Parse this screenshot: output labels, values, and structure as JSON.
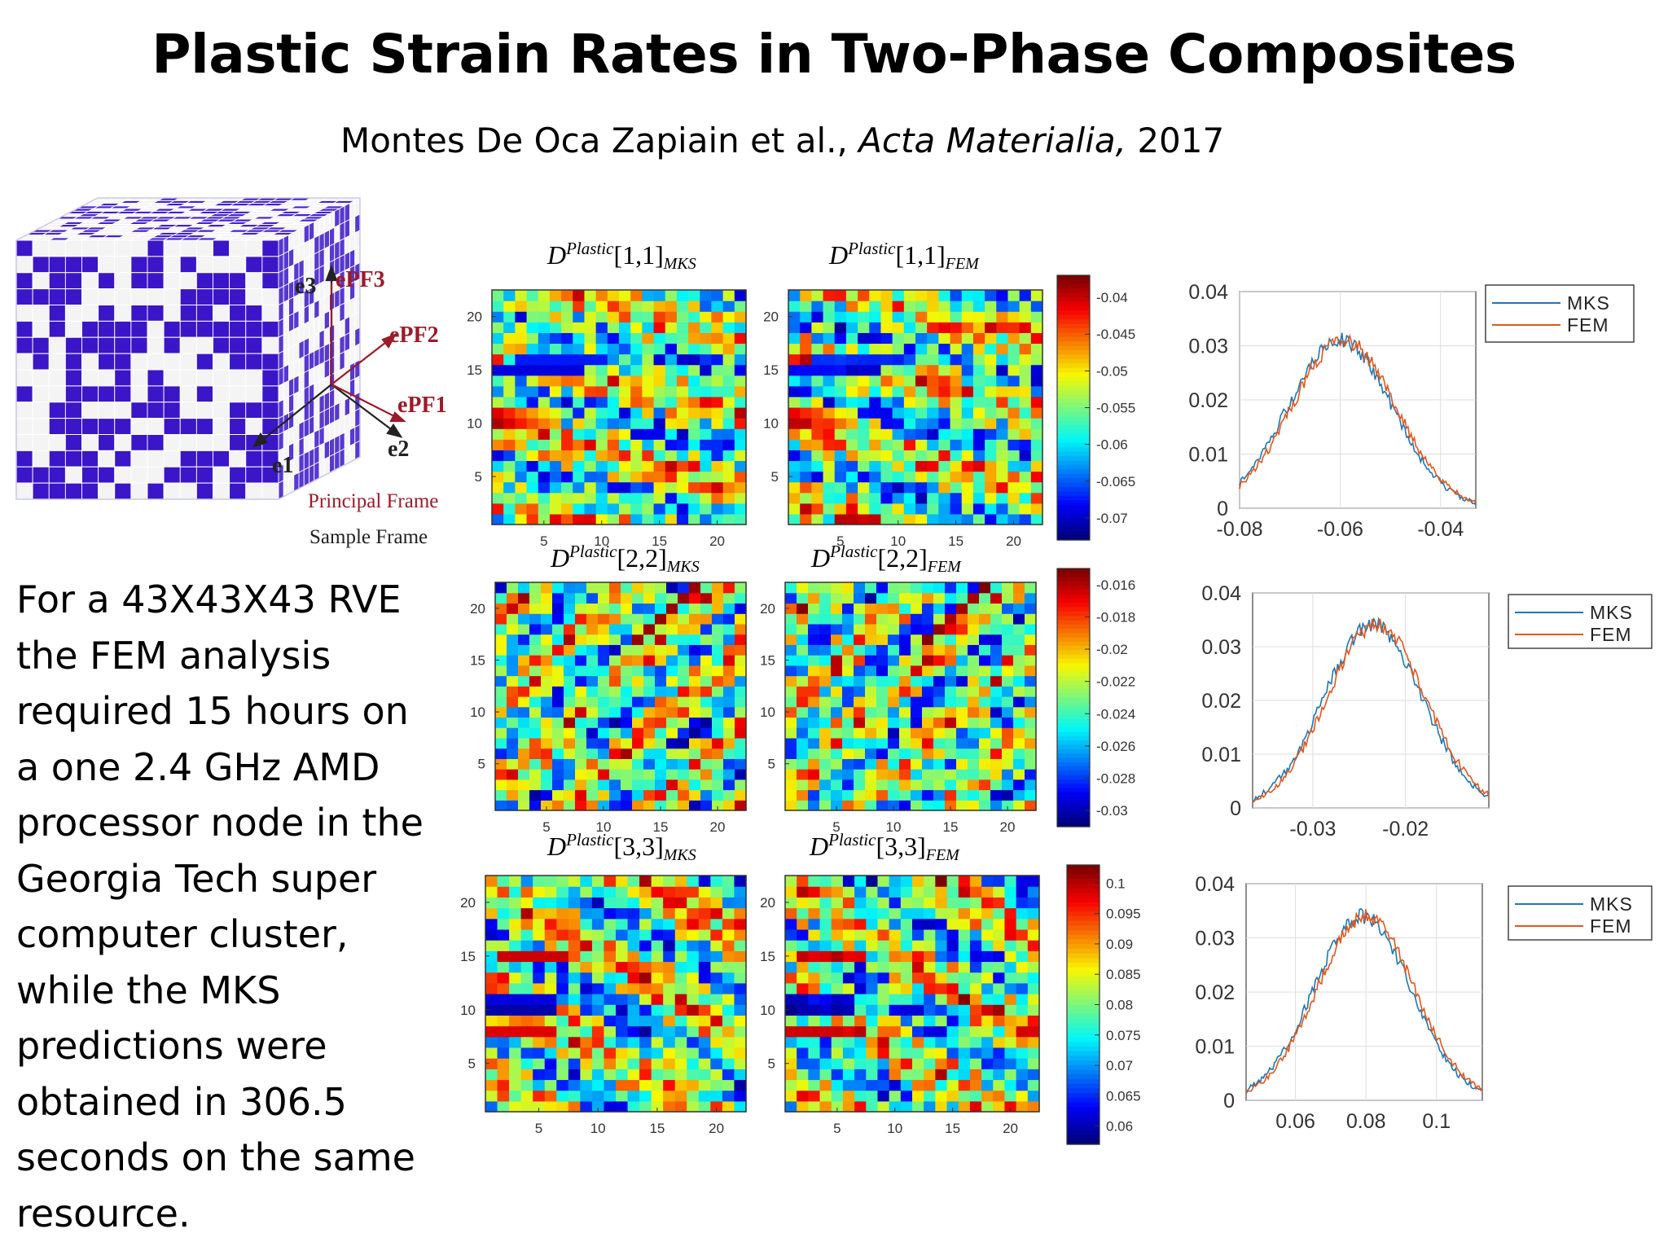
{
  "title": "Plastic Strain Rates in Two-Phase Composites",
  "citation": {
    "authors": "Montes De Oca Zapiain et al., ",
    "journal": "Acta Materialia,",
    "year": " 2017"
  },
  "body_text": "For a 43X43X43 RVE the FEM analysis required 15 hours on a one 2.4 GHz AMD processor node in the Georgia Tech super computer cluster, while the MKS predictions were obtained in 306.5 seconds on the same resource.",
  "cube_diagram": {
    "axes": {
      "e3": "e3",
      "e1": "e1",
      "e2": "e2"
    },
    "pf_axes": {
      "p3": "ePF3",
      "p2": "ePF2",
      "p1": "ePF1"
    },
    "labels": {
      "principal_frame": "Principal Frame",
      "sample_frame": "Sample Frame"
    },
    "colors": {
      "phase": "#3a16c8",
      "grid": "#ffffff",
      "principal": "#9b1b2a"
    }
  },
  "chart_data": [
    {
      "type": "heatmap",
      "title": "D^Plastic[1,1]_MKS",
      "component": "[1,1]",
      "source": "MKS",
      "grid": [
        22,
        22
      ],
      "xticks": [
        5,
        10,
        15,
        20
      ],
      "yticks": [
        5,
        10,
        15,
        20
      ],
      "clim": [
        -0.073,
        -0.037
      ]
    },
    {
      "type": "heatmap",
      "title": "D^Plastic[1,1]_FEM",
      "component": "[1,1]",
      "source": "FEM",
      "grid": [
        22,
        22
      ],
      "xticks": [
        5,
        10,
        15,
        20
      ],
      "yticks": [
        5,
        10,
        15,
        20
      ],
      "clim": [
        -0.073,
        -0.037
      ],
      "colorbar_ticks": [
        -0.04,
        -0.045,
        -0.05,
        -0.055,
        -0.06,
        -0.065,
        -0.07
      ]
    },
    {
      "type": "line",
      "series": [
        {
          "name": "MKS",
          "color": "#1f77b4"
        },
        {
          "name": "FEM",
          "color": "#e2571d"
        }
      ],
      "xticks": [
        "-0.08",
        "-0.06",
        "-0.04"
      ],
      "yticks": [
        "0",
        "0.01",
        "0.02",
        "0.03",
        "0.04"
      ],
      "xlim": [
        -0.08,
        -0.033
      ],
      "ylim": [
        0,
        0.04
      ],
      "peak": {
        "x": -0.06,
        "y": 0.031
      },
      "width": 0.018,
      "grid": true,
      "legend": "top-right"
    },
    {
      "type": "heatmap",
      "title": "D^Plastic[2,2]_MKS",
      "component": "[2,2]",
      "source": "MKS",
      "grid": [
        22,
        22
      ],
      "xticks": [
        5,
        10,
        15,
        20
      ],
      "yticks": [
        5,
        10,
        15,
        20
      ],
      "clim": [
        -0.031,
        -0.015
      ]
    },
    {
      "type": "heatmap",
      "title": "D^Plastic[2,2]_FEM",
      "component": "[2,2]",
      "source": "FEM",
      "grid": [
        22,
        22
      ],
      "xticks": [
        5,
        10,
        15,
        20
      ],
      "yticks": [
        5,
        10,
        15,
        20
      ],
      "clim": [
        -0.031,
        -0.015
      ],
      "colorbar_ticks": [
        -0.016,
        -0.018,
        -0.02,
        -0.022,
        -0.024,
        -0.026,
        -0.028,
        -0.03
      ]
    },
    {
      "type": "line",
      "series": [
        {
          "name": "MKS",
          "color": "#1f77b4"
        },
        {
          "name": "FEM",
          "color": "#e2571d"
        }
      ],
      "xticks": [
        "-0.03",
        "-0.02"
      ],
      "yticks": [
        "0",
        "0.01",
        "0.02",
        "0.03",
        "0.04"
      ],
      "xlim": [
        -0.0365,
        -0.011
      ],
      "ylim": [
        0,
        0.04
      ],
      "peak": {
        "x": -0.0235,
        "y": 0.034
      },
      "width": 0.0092,
      "grid": true,
      "legend": "top-right"
    },
    {
      "type": "heatmap",
      "title": "D^Plastic[3,3]_MKS",
      "component": "[3,3]",
      "source": "MKS",
      "grid": [
        22,
        22
      ],
      "xticks": [
        5,
        10,
        15,
        20
      ],
      "yticks": [
        5,
        10,
        15,
        20
      ],
      "clim": [
        0.057,
        0.103
      ]
    },
    {
      "type": "heatmap",
      "title": "D^Plastic[3,3]_FEM",
      "component": "[3,3]",
      "source": "FEM",
      "grid": [
        22,
        22
      ],
      "xticks": [
        5,
        10,
        15,
        20
      ],
      "yticks": [
        5,
        10,
        15,
        20
      ],
      "clim": [
        0.057,
        0.103
      ],
      "colorbar_ticks": [
        0.1,
        0.095,
        0.09,
        0.085,
        0.08,
        0.075,
        0.07,
        0.065,
        0.06
      ]
    },
    {
      "type": "line",
      "series": [
        {
          "name": "MKS",
          "color": "#1f77b4"
        },
        {
          "name": "FEM",
          "color": "#e2571d"
        }
      ],
      "xticks": [
        "0.06",
        "0.08",
        "0.1"
      ],
      "yticks": [
        "0",
        "0.01",
        "0.02",
        "0.03",
        "0.04"
      ],
      "xlim": [
        0.046,
        0.113
      ],
      "ylim": [
        0,
        0.04
      ],
      "peak": {
        "x": 0.079,
        "y": 0.034
      },
      "width": 0.024,
      "grid": true,
      "legend": "top-right"
    }
  ]
}
